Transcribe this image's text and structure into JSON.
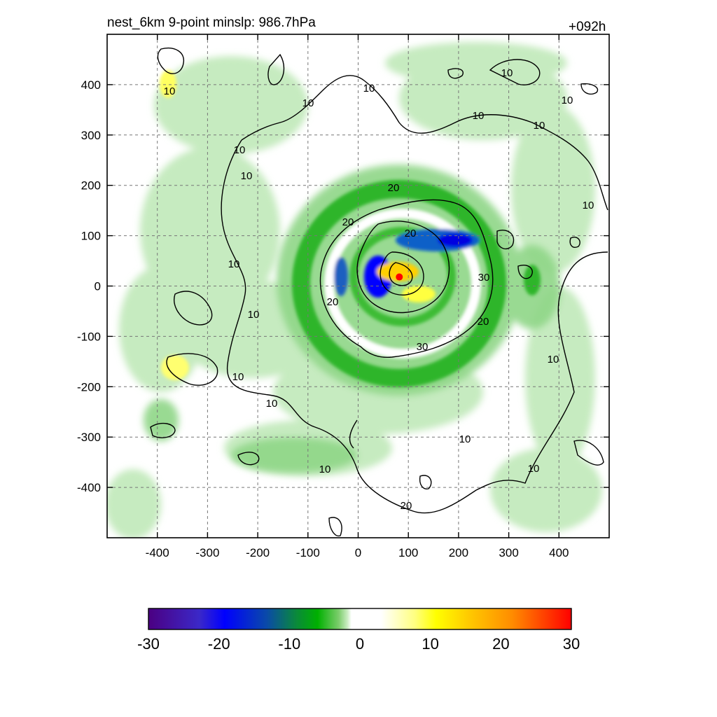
{
  "chart_data": {
    "type": "heatmap",
    "title_left": "nest_6km  9-point minslp: 986.7hPa",
    "title_right": "+092h",
    "xlim": [
      -500,
      500
    ],
    "ylim": [
      -500,
      500
    ],
    "x_ticks": [
      -400,
      -300,
      -200,
      -100,
      0,
      100,
      200,
      300,
      400
    ],
    "y_ticks": [
      400,
      300,
      200,
      100,
      0,
      -100,
      -200,
      -300,
      -400
    ],
    "grid": true,
    "center_marker": {
      "x": 82,
      "y": 18,
      "color": "#ff0000"
    },
    "colorbar": {
      "ticks": [
        -30,
        -20,
        -10,
        0,
        10,
        20,
        30
      ],
      "range": [
        -30,
        30
      ],
      "orientation": "horizontal",
      "colors": {
        "deep_negative": "#4b0082",
        "strong_negative": "#0000ff",
        "moderate_negative": "#00a000",
        "weak_negative": "#a8dca0",
        "zero": "#ffffff",
        "weak_positive": "#ffff80",
        "moderate_positive": "#ffff00",
        "strong_positive": "#ff8c00",
        "extreme_positive": "#ff0000"
      }
    },
    "contour_labels": [
      "10",
      "10",
      "10",
      "10",
      "10",
      "10",
      "10",
      "10",
      "10",
      "10",
      "10",
      "10",
      "10",
      "10",
      "10",
      "10",
      "10",
      "10",
      "20",
      "20",
      "20",
      "20",
      "20",
      "20",
      "30",
      "30"
    ]
  }
}
